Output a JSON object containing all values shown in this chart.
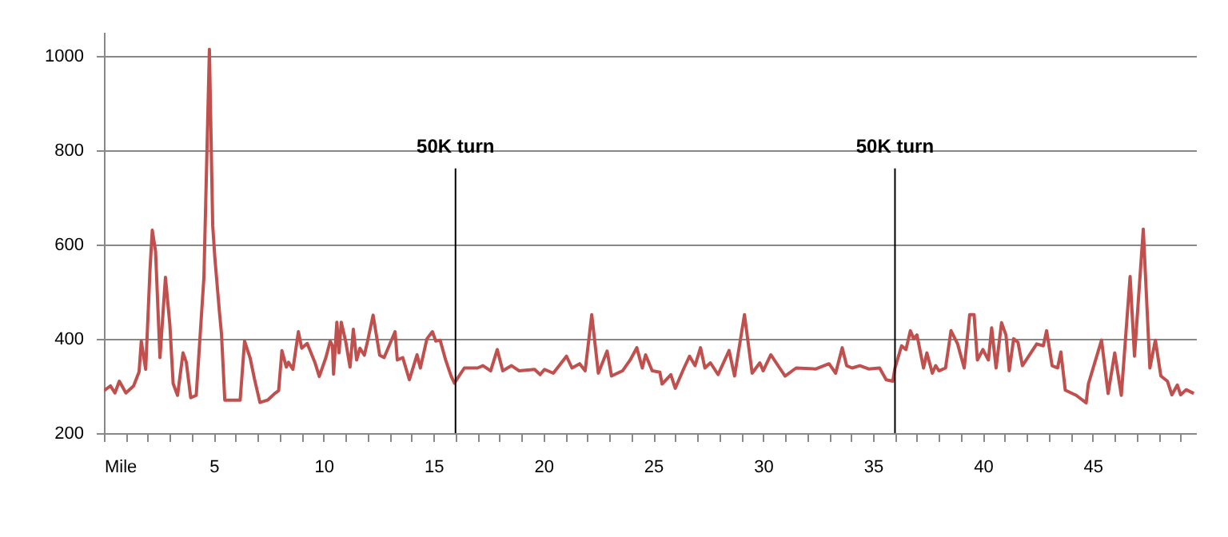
{
  "chart_data": {
    "type": "line",
    "xlim": [
      0,
      49.7
    ],
    "ylim": [
      200,
      1050
    ],
    "yticks": [
      200,
      400,
      600,
      800,
      1000
    ],
    "xticks": [
      {
        "value": 0,
        "label": "Mile"
      },
      {
        "value": 1,
        "label": null
      },
      {
        "value": 2,
        "label": null
      },
      {
        "value": 3,
        "label": null
      },
      {
        "value": 4,
        "label": null
      },
      5,
      {
        "value": 6,
        "label": null
      },
      {
        "value": 7,
        "label": null
      },
      {
        "value": 8,
        "label": null
      },
      {
        "value": 9,
        "label": null
      },
      10,
      {
        "value": 11,
        "label": null
      },
      {
        "value": 12,
        "label": null
      },
      {
        "value": 13,
        "label": null
      },
      {
        "value": 14,
        "label": null
      },
      15,
      {
        "value": 16,
        "label": null
      },
      {
        "value": 17,
        "label": null
      },
      {
        "value": 18,
        "label": null
      },
      {
        "value": 19,
        "label": null
      },
      20,
      {
        "value": 21,
        "label": null
      },
      {
        "value": 22,
        "label": null
      },
      {
        "value": 23,
        "label": null
      },
      {
        "value": 24,
        "label": null
      },
      25,
      {
        "value": 26,
        "label": null
      },
      {
        "value": 27,
        "label": null
      },
      {
        "value": 28,
        "label": null
      },
      {
        "value": 29,
        "label": null
      },
      30,
      {
        "value": 31,
        "label": null
      },
      {
        "value": 32,
        "label": null
      },
      {
        "value": 33,
        "label": null
      },
      {
        "value": 34,
        "label": null
      },
      35,
      {
        "value": 36,
        "label": null
      },
      {
        "value": 37,
        "label": null
      },
      {
        "value": 38,
        "label": null
      },
      {
        "value": 39,
        "label": null
      },
      40,
      {
        "value": 41,
        "label": null
      },
      {
        "value": 42,
        "label": null
      },
      {
        "value": 43,
        "label": null
      },
      {
        "value": 44,
        "label": null
      },
      45,
      {
        "value": 46,
        "label": null
      },
      {
        "value": 47,
        "label": null
      },
      {
        "value": 48,
        "label": null
      },
      {
        "value": 49,
        "label": null
      }
    ],
    "grid": "y",
    "marker": "none",
    "line_style": "solid",
    "ref_lines": [
      {
        "axis": "x",
        "value": 16,
        "label": "50K turn",
        "color": "#000000"
      },
      {
        "axis": "x",
        "value": 36,
        "label": "50K turn",
        "color": "#000000"
      }
    ],
    "x": [
      0,
      0.3,
      0.5,
      0.7,
      1.0,
      1.35,
      1.6,
      1.7,
      1.9,
      2.1,
      2.2,
      2.35,
      2.55,
      2.8,
      3.0,
      3.15,
      3.35,
      3.6,
      3.75,
      3.95,
      4.2,
      4.55,
      4.8,
      4.95,
      5.05,
      5.25,
      5.35,
      5.5,
      6.2,
      6.4,
      6.65,
      6.85,
      7.1,
      7.45,
      7.8,
      7.95,
      8.1,
      8.3,
      8.4,
      8.6,
      8.85,
      9.0,
      9.25,
      9.6,
      9.8,
      10.1,
      10.3,
      10.4,
      10.45,
      10.6,
      10.7,
      10.8,
      11.0,
      11.2,
      11.35,
      11.5,
      11.65,
      11.85,
      12.0,
      12.25,
      12.55,
      12.75,
      13.25,
      13.35,
      13.6,
      13.9,
      14.25,
      14.4,
      14.7,
      14.95,
      15.1,
      15.3,
      15.55,
      15.8,
      15.95,
      16.4,
      17.0,
      17.25,
      17.6,
      17.9,
      18.15,
      18.55,
      18.9,
      19.6,
      19.85,
      20.05,
      20.45,
      21.05,
      21.3,
      21.65,
      21.9,
      22.2,
      22.5,
      22.9,
      23.1,
      23.6,
      23.95,
      24.25,
      24.5,
      24.65,
      24.95,
      25.3,
      25.4,
      25.8,
      26.0,
      26.4,
      26.65,
      26.9,
      27.15,
      27.35,
      27.6,
      27.95,
      28.45,
      28.7,
      29.15,
      29.5,
      29.85,
      30.0,
      30.35,
      30.75,
      31.0,
      31.5,
      32.4,
      33.0,
      33.3,
      33.6,
      33.8,
      34.05,
      34.4,
      34.8,
      35.3,
      35.6,
      35.9,
      36.0,
      36.3,
      36.5,
      36.7,
      36.85,
      37.0,
      37.3,
      37.45,
      37.7,
      37.85,
      38.0,
      38.3,
      38.55,
      38.85,
      39.15,
      39.4,
      39.6,
      39.75,
      40.0,
      40.25,
      40.4,
      40.6,
      40.85,
      41.05,
      41.2,
      41.4,
      41.6,
      41.8,
      42.45,
      42.75,
      42.9,
      43.15,
      43.4,
      43.55,
      43.75,
      44.25,
      44.7,
      44.8,
      45.4,
      45.7,
      46.0,
      46.3,
      46.7,
      46.9,
      47.3,
      47.6,
      47.85,
      48.1,
      48.4,
      48.6,
      48.85,
      49.0,
      49.25,
      49.6
    ],
    "series": [
      {
        "color": "#c0504d",
        "values": [
          290,
          300,
          285,
          310,
          285,
          300,
          330,
          395,
          335,
          550,
          630,
          585,
          360,
          530,
          430,
          305,
          280,
          370,
          350,
          275,
          280,
          530,
          1013,
          640,
          570,
          460,
          410,
          270,
          270,
          395,
          360,
          315,
          265,
          270,
          285,
          290,
          375,
          340,
          350,
          335,
          415,
          380,
          390,
          350,
          320,
          360,
          395,
          385,
          325,
          435,
          370,
          435,
          395,
          340,
          420,
          355,
          380,
          365,
          395,
          450,
          365,
          360,
          415,
          355,
          360,
          313,
          366,
          338,
          400,
          415,
          395,
          397,
          355,
          321,
          306,
          338,
          338,
          343,
          332,
          377,
          332,
          343,
          332,
          335,
          324,
          335,
          327,
          363,
          338,
          347,
          332,
          451,
          327,
          374,
          321,
          332,
          355,
          381,
          338,
          366,
          332,
          329,
          304,
          324,
          295,
          338,
          363,
          343,
          381,
          338,
          349,
          324,
          375,
          321,
          451,
          327,
          349,
          332,
          366,
          338,
          321,
          338,
          336,
          347,
          327,
          381,
          343,
          338,
          343,
          336,
          338,
          313,
          310,
          338,
          385,
          377,
          417,
          400,
          408,
          338,
          370,
          327,
          343,
          332,
          338,
          417,
          389,
          338,
          451,
          451,
          355,
          377,
          355,
          423,
          338,
          434,
          408,
          332,
          400,
          392,
          343,
          389,
          385,
          417,
          343,
          338,
          372,
          291,
          280,
          264,
          304,
          397,
          284,
          370,
          280,
          532,
          363,
          632,
          338,
          397,
          321,
          310,
          281,
          302,
          281,
          292,
          284
        ]
      }
    ]
  }
}
